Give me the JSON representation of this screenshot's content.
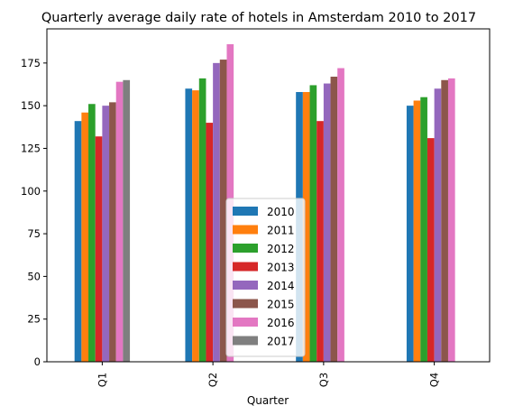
{
  "chart_data": {
    "type": "bar",
    "title": "Quarterly average daily rate of hotels in Amsterdam 2010 to 2017",
    "xlabel": "Quarter",
    "ylabel": "",
    "categories": [
      "Q1",
      "Q2",
      "Q3",
      "Q4"
    ],
    "ylim": [
      0,
      195
    ],
    "yticks": [
      0,
      25,
      50,
      75,
      100,
      125,
      150,
      175
    ],
    "grid": false,
    "legend_position": "bottom-center",
    "series": [
      {
        "name": "2010",
        "color": "#1f77b4",
        "values": [
          141,
          160,
          158,
          150
        ]
      },
      {
        "name": "2011",
        "color": "#ff7f0e",
        "values": [
          146,
          159,
          158,
          153
        ]
      },
      {
        "name": "2012",
        "color": "#2ca02c",
        "values": [
          151,
          166,
          162,
          155
        ]
      },
      {
        "name": "2013",
        "color": "#d62728",
        "values": [
          132,
          140,
          141,
          131
        ]
      },
      {
        "name": "2014",
        "color": "#9467bd",
        "values": [
          150,
          175,
          163,
          160
        ]
      },
      {
        "name": "2015",
        "color": "#8c564b",
        "values": [
          152,
          177,
          167,
          165
        ]
      },
      {
        "name": "2016",
        "color": "#e377c2",
        "values": [
          164,
          186,
          172,
          166
        ]
      },
      {
        "name": "2017",
        "color": "#7f7f7f",
        "values": [
          165,
          null,
          null,
          null
        ]
      }
    ]
  }
}
